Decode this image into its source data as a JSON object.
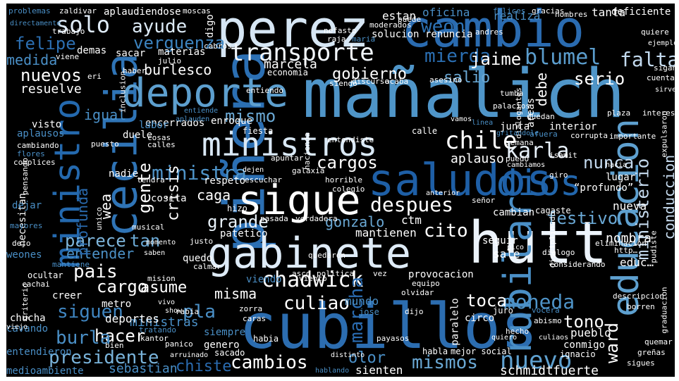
{
  "colors": {
    "background": "#000000",
    "palette": [
      "#08306b",
      "#08519c",
      "#2171b5",
      "#4292c6",
      "#6baed6",
      "#9ecae1",
      "#c6dbef",
      "#deebf7",
      "#f7fbff",
      "#ffffff"
    ]
  },
  "words": [
    {
      "text": "mañalich",
      "color": "#4f95c8"
    },
    {
      "text": "piñera",
      "color": "#2b6fb3"
    },
    {
      "text": "cubillos",
      "color": "#2c6db0"
    },
    {
      "text": "perez",
      "color": "#d6e6f4"
    },
    {
      "text": "cambio",
      "color": "#2a6bb0"
    },
    {
      "text": "hutt",
      "color": "#ecf3fb"
    },
    {
      "text": "gabinete",
      "color": "#deebf7"
    },
    {
      "text": "sigue",
      "color": "#ffffff"
    },
    {
      "text": "saludos",
      "color": "#1e5fa6"
    },
    {
      "text": "cecilia",
      "color": "#2f74b6"
    },
    {
      "text": "ministro",
      "color": "#2469ae"
    },
    {
      "text": "educacion",
      "color": "#5ea0cf"
    },
    {
      "text": "deporte",
      "color": "#5d9fce"
    },
    {
      "text": "rubilar",
      "color": "#4a8fc6"
    },
    {
      "text": "ministros",
      "color": "#d9e8f5"
    },
    {
      "text": "dios",
      "color": "#2266ac"
    },
    {
      "text": "transporte",
      "color": "#f2f7fc"
    },
    {
      "text": "chadwick",
      "color": "#ffffff"
    },
    {
      "text": "presidente",
      "color": "#79b3da"
    },
    {
      "text": "despues",
      "color": "#ffffff"
    },
    {
      "text": "chile",
      "color": "#ffffff"
    },
    {
      "text": "karla",
      "color": "#e7f0f9"
    },
    {
      "text": "ministra",
      "color": "#4e93c7"
    },
    {
      "text": "moneda",
      "color": "#4e93c7"
    },
    {
      "text": "nuevo",
      "color": "#5ea0cf"
    },
    {
      "text": "blumel",
      "color": "#5b9dcd"
    },
    {
      "text": "mierda",
      "color": "#2b6fb3"
    },
    {
      "text": "ayude",
      "color": "#dceaf6"
    },
    {
      "text": "solo",
      "color": "#e0ecf8"
    },
    {
      "text": "gobierno",
      "color": "#ffffff"
    },
    {
      "text": "siguen",
      "color": "#3f85c0"
    },
    {
      "text": "cambios",
      "color": "#ffffff"
    },
    {
      "text": "mismos",
      "color": "#6aa8d4"
    },
    {
      "text": "pais",
      "color": "#ffffff"
    },
    {
      "text": "hacer",
      "color": "#ffffff"
    },
    {
      "text": "cargo",
      "color": "#ffffff"
    },
    {
      "text": "marcha",
      "color": "#2a6bb0"
    },
    {
      "text": "falta",
      "color": "#c2d9ee"
    },
    {
      "text": "jaime",
      "color": "#ffffff"
    },
    {
      "text": "cargos",
      "color": "#ffffff"
    },
    {
      "text": "grande",
      "color": "#e9f2fa"
    },
    {
      "text": "gente",
      "color": "#ffffff"
    },
    {
      "text": "nuevos",
      "color": "#ffffff"
    },
    {
      "text": "verguenza",
      "color": "#3c83bf"
    },
    {
      "text": "felipe",
      "color": "#2c6fb2"
    },
    {
      "text": "mismo",
      "color": "#6aa8d4"
    },
    {
      "text": "crisis",
      "color": "#ffffff"
    },
    {
      "text": "parece",
      "color": "#7fb6dc"
    },
    {
      "text": "entender",
      "color": "#4c91c6"
    },
    {
      "text": "weon",
      "color": "#2d72b4"
    },
    {
      "text": "serio",
      "color": "#ffffff"
    },
    {
      "text": "salio",
      "color": "#6aa8d4"
    },
    {
      "text": "nunca",
      "color": "#c3d9ee"
    },
    {
      "text": "burla",
      "color": "#4a8fc6"
    },
    {
      "text": "culiao",
      "color": "#ffffff"
    },
    {
      "text": "misma",
      "color": "#ffffff"
    },
    {
      "text": "asume",
      "color": "#ffffff"
    },
    {
      "text": "toca",
      "color": "#ffffff"
    },
    {
      "text": "tono",
      "color": "#ffffff"
    },
    {
      "text": "ward",
      "color": "#ffffff"
    },
    {
      "text": "chiste",
      "color": "#2a6bb0"
    },
    {
      "text": "olor",
      "color": "#4a8fc6"
    },
    {
      "text": "sebastian",
      "color": "#4a8fc6"
    },
    {
      "text": "ministerio",
      "color": "#c6dbef"
    },
    {
      "text": "festivo",
      "color": "#6aa8d4"
    },
    {
      "text": "conduccion",
      "color": "#c6dbef"
    },
    {
      "text": "burlesco",
      "color": "#ffffff"
    },
    {
      "text": "marcela",
      "color": "#ffffff"
    },
    {
      "text": "resuelve",
      "color": "#ffffff"
    },
    {
      "text": "medida",
      "color": "#4a8fc6"
    },
    {
      "text": "igual",
      "color": "#4a8fc6"
    },
    {
      "text": "tan",
      "color": "#6aa8d4"
    },
    {
      "text": "cito",
      "color": "#ffffff"
    },
    {
      "text": "pla",
      "color": "#4a8fc6"
    },
    {
      "text": "caga",
      "color": "#ffffff"
    },
    {
      "text": "wea",
      "color": "#ffffff"
    },
    {
      "text": "profunda",
      "color": "#2a6bb0"
    },
    {
      "text": "gonzalo",
      "color": "#6aa8d4"
    },
    {
      "text": "debe",
      "color": "#ffffff"
    },
    {
      "text": "nueva",
      "color": "#ffffff"
    },
    {
      "text": "ministras",
      "color": "#4a8fc6"
    },
    {
      "text": "deportes",
      "color": "#ffffff"
    },
    {
      "text": "schmidt",
      "color": "#ffffff"
    },
    {
      "text": "fuerte",
      "color": "#ffffff"
    },
    {
      "text": "sienten",
      "color": "#ffffff"
    },
    {
      "text": "medioambiente",
      "color": "#4a8fc6"
    },
    {
      "text": "mundo",
      "color": "#4a8fc6"
    },
    {
      "text": "nombra",
      "color": "#ffffff"
    },
    {
      "text": "mantienen",
      "color": "#ffffff"
    },
    {
      "text": "patetico",
      "color": "#ffffff"
    },
    {
      "text": "aplauso",
      "color": "#ffffff"
    },
    {
      "text": "respeto",
      "color": "#ffffff"
    },
    {
      "text": "nadie",
      "color": "#ffffff"
    },
    {
      "text": "oficina",
      "color": "#4a8fc6"
    },
    {
      "text": "renuncia",
      "color": "#ffffff"
    },
    {
      "text": "solucion",
      "color": "#ffffff"
    },
    {
      "text": "estan",
      "color": "#ffffff"
    },
    {
      "text": "realiza",
      "color": "#4a8fc6"
    },
    {
      "text": "tanta",
      "color": "#ffffff"
    },
    {
      "text": "deficiente",
      "color": "#ffffff"
    },
    {
      "text": "aplaudiendose",
      "color": "#ffffff"
    },
    {
      "text": "digo",
      "color": "#ffffff"
    },
    {
      "text": "materias",
      "color": "#ffffff"
    },
    {
      "text": "sacar",
      "color": "#ffffff"
    },
    {
      "text": "demas",
      "color": "#ffffff"
    },
    {
      "text": "economia",
      "color": "#ffffff"
    },
    {
      "text": "encerrados",
      "color": "#ffffff"
    },
    {
      "text": "labor",
      "color": "#4a8fc6"
    },
    {
      "text": "duele",
      "color": "#ffffff"
    },
    {
      "text": "visto",
      "color": "#ffffff"
    },
    {
      "text": "aplausos",
      "color": "#4a8fc6"
    },
    {
      "text": "enroque",
      "color": "#ffffff"
    },
    {
      "text": "fiesta",
      "color": "#ffffff"
    },
    {
      "text": "calle",
      "color": "#ffffff"
    },
    {
      "text": "junta",
      "color": "#ffffff"
    },
    {
      "text": "areas",
      "color": "#ffffff"
    },
    {
      "text": "interior",
      "color": "#ffffff"
    },
    {
      "text": "lugar",
      "color": "#ffffff"
    },
    {
      "text": "“profundo”",
      "color": "#ffffff"
    },
    {
      "text": "cosita",
      "color": "#ffffff"
    },
    {
      "text": "hizo",
      "color": "#ffffff"
    },
    {
      "text": "pasada",
      "color": "#ffffff"
    },
    {
      "text": "verdadera",
      "color": "#ffffff"
    },
    {
      "text": "cambian",
      "color": "#ffffff"
    },
    {
      "text": "cagaste",
      "color": "#ffffff"
    },
    {
      "text": "seguir",
      "color": "#ffffff"
    },
    {
      "text": "sale",
      "color": "#ffffff"
    },
    {
      "text": "quedo",
      "color": "#ffffff"
    },
    {
      "text": "ctm",
      "color": "#ffffff"
    },
    {
      "text": "necesitan",
      "color": "#ffffff"
    },
    {
      "text": "weones",
      "color": "#4a8fc6"
    },
    {
      "text": "creer",
      "color": "#ffffff"
    },
    {
      "text": "metro",
      "color": "#ffffff"
    },
    {
      "text": "siempre",
      "color": "#4a8fc6"
    },
    {
      "text": "genero",
      "color": "#ffffff"
    },
    {
      "text": "sacado",
      "color": "#ffffff"
    },
    {
      "text": "habia",
      "color": "#ffffff"
    },
    {
      "text": "chucha",
      "color": "#ffffff"
    },
    {
      "text": "cavando",
      "color": "#4a8fc6"
    },
    {
      "text": "entendieron",
      "color": "#4a8fc6"
    },
    {
      "text": "pueblo",
      "color": "#ffffff"
    },
    {
      "text": "conmigo",
      "color": "#ffffff"
    },
    {
      "text": "paralelo",
      "color": "#ffffff"
    },
    {
      "text": "circo",
      "color": "#ffffff"
    },
    {
      "text": "ignacio",
      "color": "#ffffff"
    },
    {
      "text": "hecho",
      "color": "#ffffff"
    },
    {
      "text": "habla",
      "color": "#ffffff"
    },
    {
      "text": "mejor social",
      "color": "#ffffff"
    },
    {
      "text": "viendo",
      "color": "#4a8fc6"
    },
    {
      "text": "provocacion",
      "color": "#ffffff"
    },
    {
      "text": "juro",
      "color": "#ffffff"
    },
    {
      "text": "ocultar",
      "color": "#ffffff"
    },
    {
      "text": "cachai",
      "color": "#ffffff"
    },
    {
      "text": "mision",
      "color": "#ffffff"
    },
    {
      "text": "problemas",
      "color": "#4a8fc6"
    },
    {
      "text": "zaldivar",
      "color": "#ffffff"
    },
    {
      "text": "moscas",
      "color": "#ffffff"
    },
    {
      "text": "nombres",
      "color": "#ffffff"
    },
    {
      "text": "quiere",
      "color": "#ffffff"
    },
    {
      "text": "nefasto",
      "color": "#ffffff"
    },
    {
      "text": "moderados",
      "color": "#ffffff"
    },
    {
      "text": "puede",
      "color": "#ffffff"
    },
    {
      "text": "andres",
      "color": "#ffffff"
    },
    {
      "text": "trabajo",
      "color": "#ffffff"
    },
    {
      "text": "asesino",
      "color": "#ffffff"
    },
    {
      "text": "acaba",
      "color": "#ffffff"
    },
    {
      "text": "entiendo",
      "color": "#ffffff"
    },
    {
      "text": "discurso",
      "color": "#ffffff"
    },
    {
      "text": "siendo",
      "color": "#ffffff"
    },
    {
      "text": "dialogo",
      "color": "#ffffff"
    },
    {
      "text": "vez",
      "color": "#ffffff"
    },
    {
      "text": "politica",
      "color": "#ffffff"
    },
    {
      "text": "asco",
      "color": "#ffffff"
    },
    {
      "text": "calmar",
      "color": "#ffffff"
    },
    {
      "text": "justo",
      "color": "#ffffff"
    },
    {
      "text": "zorra",
      "color": "#ffffff"
    },
    {
      "text": "caras",
      "color": "#ffffff"
    },
    {
      "text": "rabia",
      "color": "#ffffff"
    },
    {
      "text": "panico",
      "color": "#ffffff"
    },
    {
      "text": "bien",
      "color": "#ffffff"
    },
    {
      "text": "tratando",
      "color": "#4a8fc6"
    },
    {
      "text": "viento",
      "color": "#ffffff"
    },
    {
      "text": "pudiste",
      "color": "#ffffff"
    },
    {
      "text": "horrible",
      "color": "#ffffff"
    },
    {
      "text": "colegio",
      "color": "#ffffff"
    },
    {
      "text": "galaxia",
      "color": "#ffffff"
    },
    {
      "text": "escuchar",
      "color": "#ffffff"
    },
    {
      "text": "apuntar",
      "color": "#ffffff"
    },
    {
      "text": "puedo",
      "color": "#ffffff"
    },
    {
      "text": "señor",
      "color": "#ffffff"
    },
    {
      "text": "tendra",
      "color": "#ffffff"
    },
    {
      "text": "plaza",
      "color": "#ffffff"
    },
    {
      "text": "cuenta",
      "color": "#ffffff"
    },
    {
      "text": "interes",
      "color": "#ffffff"
    },
    {
      "text": "sigan",
      "color": "#ffffff"
    },
    {
      "text": "haber",
      "color": "#ffffff"
    },
    {
      "text": "julio",
      "color": "#ffffff"
    },
    {
      "text": "viene",
      "color": "#ffffff"
    },
    {
      "text": "eri",
      "color": "#ffffff"
    },
    {
      "text": "inclusion",
      "color": "#ffffff"
    },
    {
      "text": "cosas",
      "color": "#ffffff"
    },
    {
      "text": "calles",
      "color": "#ffffff"
    },
    {
      "text": "puesto",
      "color": "#ffffff"
    },
    {
      "text": "cambiando",
      "color": "#ffffff"
    },
    {
      "text": "flores",
      "color": "#4a8fc6"
    },
    {
      "text": "complices",
      "color": "#ffffff"
    },
    {
      "text": "pensando",
      "color": "#ffffff"
    },
    {
      "text": "dejar",
      "color": "#4a8fc6"
    },
    {
      "text": "mayores",
      "color": "#4a8fc6"
    },
    {
      "text": "dejo",
      "color": "#ffffff"
    },
    {
      "text": "unico",
      "color": "#ffffff"
    },
    {
      "text": "musical",
      "color": "#ffffff"
    },
    {
      "text": "entendiste",
      "color": "#ffffff"
    },
    {
      "text": "hacienda",
      "color": "#ffffff"
    },
    {
      "text": "kantor",
      "color": "#ffffff"
    },
    {
      "text": "giro",
      "color": "#ffffff"
    },
    {
      "text": "quedan",
      "color": "#ffffff"
    },
    {
      "text": "importante",
      "color": "#ffffff"
    },
    {
      "text": "corrupta",
      "color": "#ffffff"
    },
    {
      "text": "semana",
      "color": "#ffffff"
    },
    {
      "text": "afuera",
      "color": "#4a8fc6"
    },
    {
      "text": "cabros",
      "color": "#ffffff"
    },
    {
      "text": "felices",
      "color": "#4a8fc6"
    },
    {
      "text": "gracias",
      "color": "#ffffff"
    },
    {
      "text": "raja",
      "color": "#ffffff"
    },
    {
      "text": "maria",
      "color": "#4a8fc6"
    },
    {
      "text": "educ…",
      "color": "#ffffff"
    },
    {
      "text": "quedaron",
      "color": "#ffffff"
    },
    {
      "text": "http…",
      "color": "#ffffff"
    },
    {
      "text": "borren",
      "color": "#ffffff"
    },
    {
      "text": "sigues",
      "color": "#ffffff"
    },
    {
      "text": "quemar",
      "color": "#ffffff"
    },
    {
      "text": "graduacion",
      "color": "#ffffff"
    },
    {
      "text": "greñas",
      "color": "#ffffff"
    },
    {
      "text": "griterio",
      "color": "#ffffff"
    },
    {
      "text": "directamente",
      "color": "#4a8fc6"
    },
    {
      "text": "olvidar",
      "color": "#ffffff"
    },
    {
      "text": "mantiene",
      "color": "#4a8fc6"
    },
    {
      "text": "considerando",
      "color": "#ffffff"
    },
    {
      "text": "eliminacion",
      "color": "#ffffff"
    },
    {
      "text": "descripcion",
      "color": "#ffffff"
    },
    {
      "text": "vocera",
      "color": "#4a8fc6"
    },
    {
      "text": "equipo",
      "color": "#ffffff"
    },
    {
      "text": "dijo",
      "color": "#ffffff"
    },
    {
      "text": "abismo",
      "color": "#ffffff"
    },
    {
      "text": "arruinado",
      "color": "#ffffff"
    },
    {
      "text": "disciplinado",
      "color": "#ffffff"
    },
    {
      "text": "viejo",
      "color": "#ffffff"
    },
    {
      "text": "show",
      "color": "#ffffff"
    },
    {
      "text": "vivo",
      "color": "#ffffff"
    },
    {
      "text": "cambiamos",
      "color": "#ffffff"
    },
    {
      "text": "jose",
      "color": "#4a8fc6"
    },
    {
      "text": "hablando",
      "color": "#4a8fc6"
    },
    {
      "text": "distinto",
      "color": "#ffffff"
    },
    {
      "text": "payasos",
      "color": "#ffffff"
    },
    {
      "text": "culiaos",
      "color": "#ffffff"
    },
    {
      "text": "quiero",
      "color": "#ffffff"
    },
    {
      "text": "dialogantes",
      "color": "#ffffff"
    },
    {
      "text": "tumba",
      "color": "#ffffff"
    },
    {
      "text": "palacios",
      "color": "#ffffff"
    },
    {
      "text": "gritandole",
      "color": "#4a8fc6"
    },
    {
      "text": "linea",
      "color": "#4a8fc6"
    },
    {
      "text": "entiende",
      "color": "#4a8fc6"
    },
    {
      "text": "aplauden",
      "color": "#4a8fc6"
    },
    {
      "text": "vamos",
      "color": "#ffffff"
    },
    {
      "text": "dejen",
      "color": "#ffffff"
    },
    {
      "text": "saben",
      "color": "#ffffff"
    },
    {
      "text": "momento",
      "color": "#ffffff"
    },
    {
      "text": "pico",
      "color": "#ffffff"
    },
    {
      "text": "hacia",
      "color": "#ffffff"
    },
    {
      "text": "isamit",
      "color": "#ffffff"
    },
    {
      "text": "anterior",
      "color": "#ffffff"
    },
    {
      "text": "expulsaron",
      "color": "#ffffff"
    },
    {
      "text": "sirve",
      "color": "#ffffff"
    },
    {
      "text": "ejemplo",
      "color": "#ffffff"
    }
  ]
}
